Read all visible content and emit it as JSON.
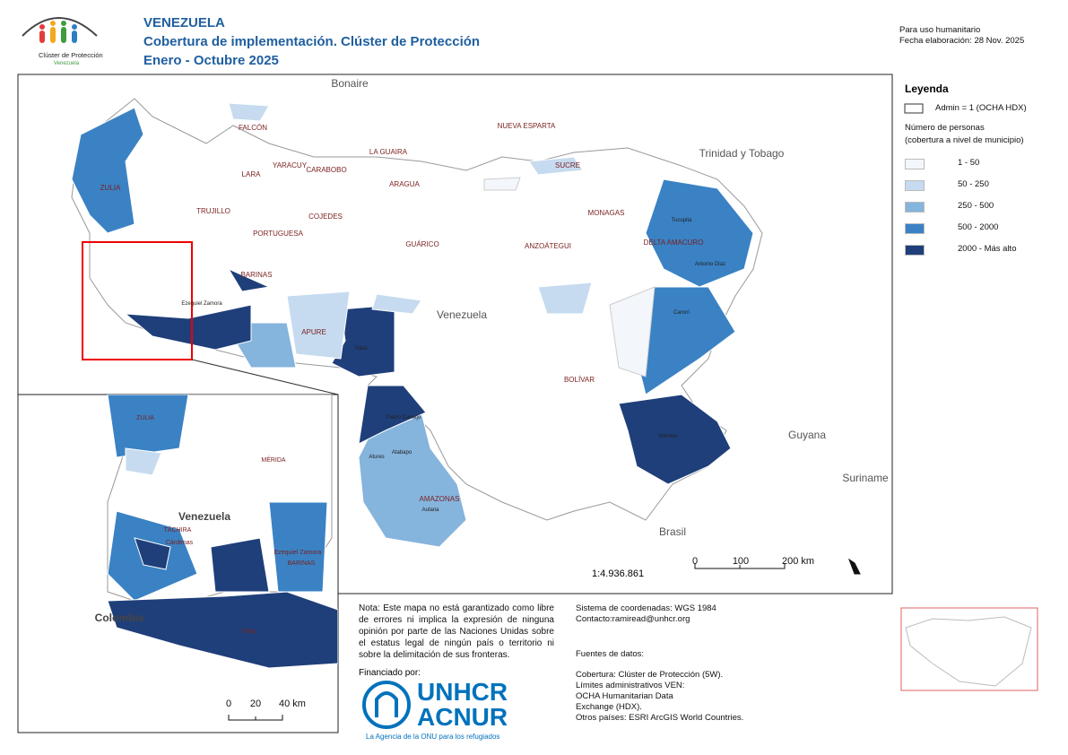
{
  "header": {
    "title": "VENEZUELA",
    "subtitle": "Cobertura de implementación. Clúster de Protección",
    "period": "Enero - Octubre 2025",
    "usage": "Para uso humanitario",
    "date": "Fecha elaboración: 28 Nov. 2025"
  },
  "logo": {
    "name": "Clúster de Protección",
    "country": "Venezuela"
  },
  "legend": {
    "title": "Leyenda",
    "admin": "Admin = 1 (OCHA HDX)",
    "subtitle": [
      "Número de personas",
      "(cobertura a nivel de municipio)"
    ],
    "classes": [
      {
        "label": "1 - 50",
        "color": "#f3f7fc"
      },
      {
        "label": "50 - 250",
        "color": "#c6dbef"
      },
      {
        "label": "250 - 500",
        "color": "#85b4dd"
      },
      {
        "label": "500 - 2000",
        "color": "#3a82c4"
      },
      {
        "label": "2000 - Más alto",
        "color": "#1f3f7a"
      }
    ]
  },
  "map": {
    "countries": [
      "Bonaire",
      "Trinidad y Tobago",
      "Venezuela",
      "Guyana",
      "Suriname",
      "Brasil"
    ],
    "states": [
      "FALCÓN",
      "LARA",
      "YARACUY",
      "CARABOBO",
      "LA GUAIRA",
      "ARAGUA",
      "NUEVA ESPARTA",
      "SUCRE",
      "MONAGAS",
      "ANZOÁTEGUI",
      "GUÁRICO",
      "COJEDES",
      "PORTUGUESA",
      "TRUJILLO",
      "ZULIA",
      "BARINAS",
      "APURE",
      "DELTA AMACURO",
      "BOLÍVAR",
      "AMAZONAS"
    ],
    "municipalities": [
      "Páez",
      "Pedro Camejo",
      "Atures",
      "Autana",
      "Atabapo",
      "Sifontes",
      "Antonio Díaz",
      "Tucupita",
      "Caroní",
      "Ezequiel Zamora"
    ],
    "scale": "1:4.936.861",
    "scale_ticks": [
      "0",
      "100",
      "200 km"
    ]
  },
  "inset": {
    "labels": [
      "ZULIA",
      "MÉRIDA",
      "TÁCHIRA",
      "BARINAS",
      "Venezuela",
      "Colombia",
      "Páez",
      "Ezequiel Zamora",
      "Cárdenas"
    ],
    "scale_ticks": [
      "0",
      "20",
      "40 km"
    ]
  },
  "note": "Nota: Este mapa no está garantizado como libre de errores ni implica la expresión de ninguna opinión por parte de las Naciones Unidas sobre el estatus legal de ningún país o territorio ni sobre la delimitación de sus fronteras.",
  "funding": {
    "label": "Financiado por:",
    "org": [
      "UNHCR",
      "ACNUR"
    ],
    "tagline": "La Agencia de la ONU para los refugiados"
  },
  "sources": {
    "crs": "Sistema de coordenadas: WGS 1984",
    "contact": "Contacto:ramiread@unhcr.org",
    "title": "Fuentes de datos:",
    "items": [
      "Cobertura: Clúster de Protección (5W).",
      "Límites administrativos VEN: OCHA Humanitarian Data Exchange (HDX).",
      "Otros países: ESRI ArcGIS World Countries."
    ]
  }
}
